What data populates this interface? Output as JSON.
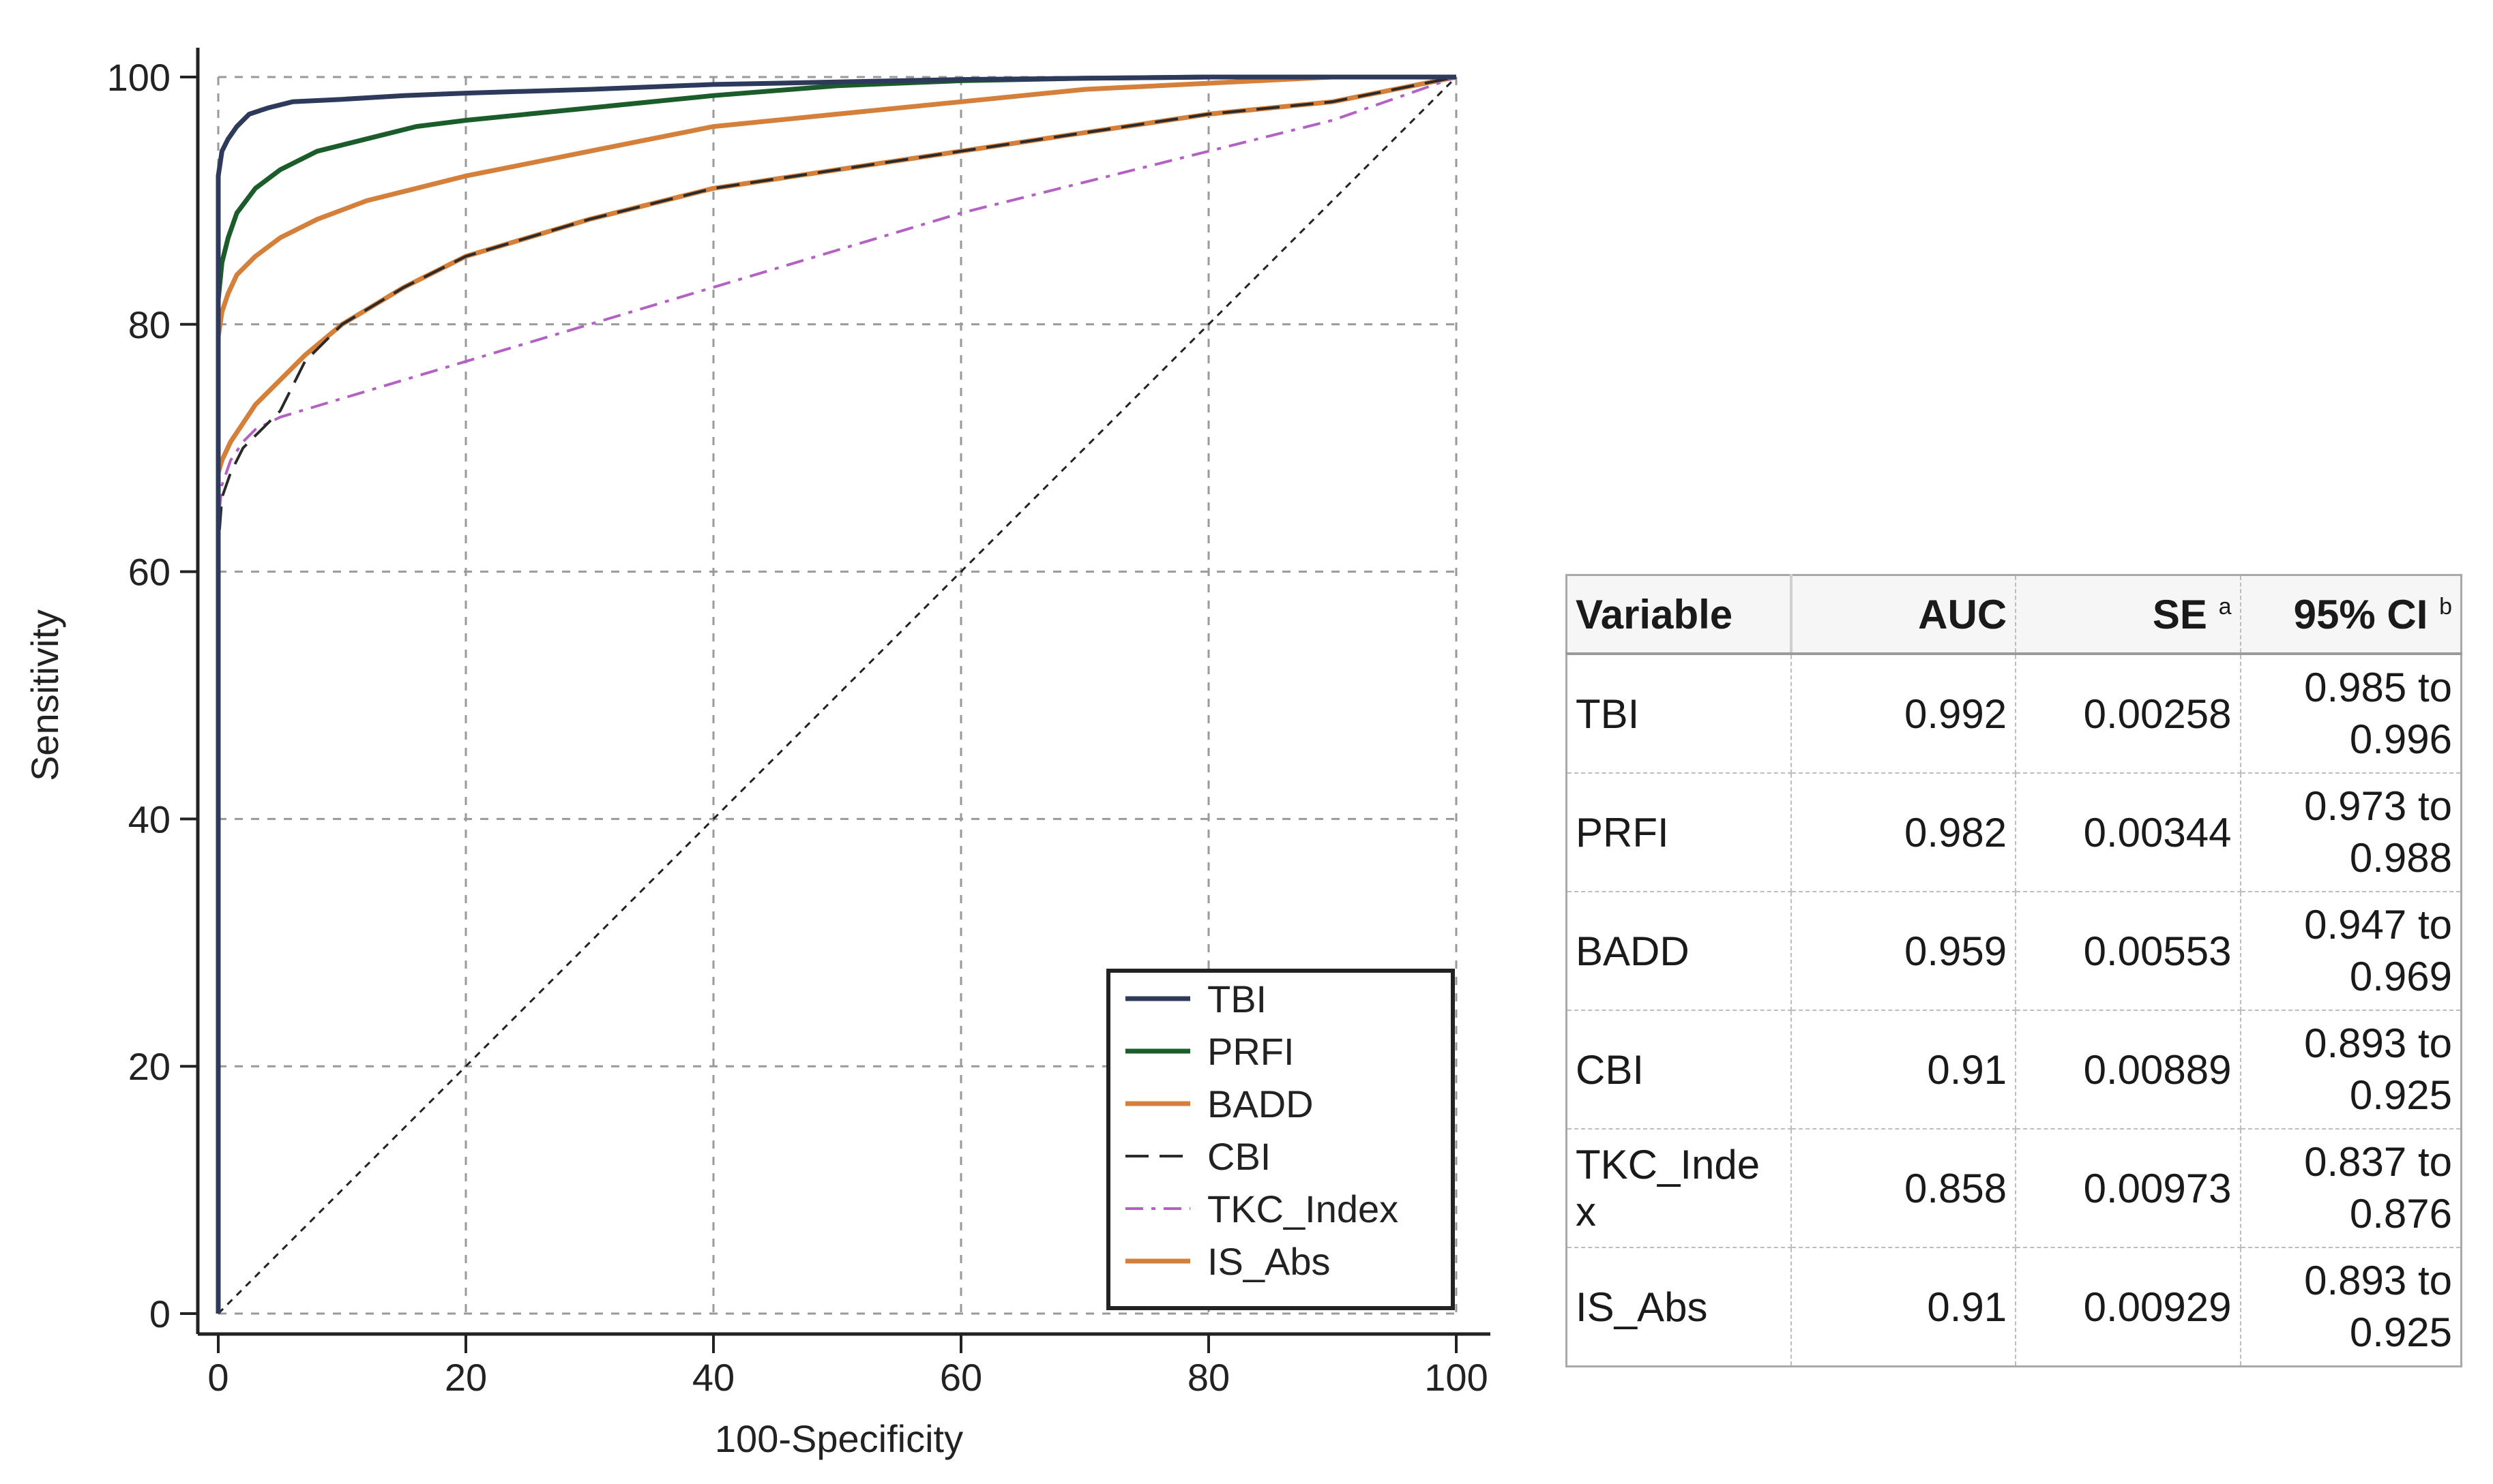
{
  "chart_data": {
    "type": "line",
    "title": "",
    "xlabel": "100-Specificity",
    "ylabel": "Sensitivity",
    "xlim": [
      0,
      100
    ],
    "ylim": [
      0,
      100
    ],
    "xticks": [
      0,
      20,
      40,
      60,
      80,
      100
    ],
    "yticks": [
      0,
      20,
      40,
      60,
      80,
      100
    ],
    "grid": true,
    "legend_position": "bottom-right",
    "reference_line": {
      "name": "diagonal",
      "x": [
        0,
        100
      ],
      "y": [
        0,
        100
      ],
      "color": "#222222"
    },
    "series": [
      {
        "name": "TBI",
        "color": "#2e3a5c",
        "dash": "solid",
        "x": [
          0,
          0,
          0.3,
          0.8,
          1.5,
          2.5,
          4,
          6,
          10,
          15,
          20,
          30,
          40,
          50,
          60,
          70,
          80,
          90,
          100
        ],
        "y": [
          0,
          92,
          94,
          95,
          96,
          97,
          97.5,
          98,
          98.2,
          98.5,
          98.7,
          99,
          99.4,
          99.6,
          99.8,
          99.9,
          100,
          100,
          100
        ]
      },
      {
        "name": "PRFI",
        "color": "#1a5c2a",
        "dash": "solid",
        "x": [
          0,
          0,
          0.3,
          0.8,
          1.5,
          3,
          5,
          8,
          12,
          16,
          20,
          25,
          30,
          40,
          50,
          60,
          70,
          80,
          90,
          100
        ],
        "y": [
          0,
          82,
          85,
          87,
          89,
          91,
          92.5,
          94,
          95,
          96,
          96.5,
          97,
          97.5,
          98.5,
          99.3,
          99.7,
          99.9,
          100,
          100,
          100
        ]
      },
      {
        "name": "BADD",
        "color": "#d47f3a",
        "dash": "solid",
        "x": [
          0,
          0,
          0.3,
          0.8,
          1.5,
          3,
          5,
          8,
          12,
          16,
          20,
          25,
          30,
          35,
          40,
          50,
          60,
          70,
          80,
          90,
          100
        ],
        "y": [
          0,
          79,
          81,
          82.5,
          84,
          85.5,
          87,
          88.5,
          90,
          91,
          92,
          93,
          94,
          95,
          96,
          97,
          98,
          99,
          99.5,
          100,
          100
        ]
      },
      {
        "name": "CBI",
        "color": "#2a2a2a",
        "dash": "long-dash",
        "x": [
          0,
          0,
          0.3,
          1,
          2,
          3,
          5,
          7,
          10,
          15,
          20,
          30,
          40,
          50,
          60,
          70,
          80,
          90,
          100
        ],
        "y": [
          0,
          62,
          66,
          68,
          70,
          71,
          73,
          77,
          80,
          83,
          85.5,
          88.5,
          91,
          92.5,
          94,
          95.5,
          97,
          98,
          100
        ]
      },
      {
        "name": "TKC_Index",
        "color": "#b362c4",
        "dash": "dash-dot",
        "x": [
          0,
          0,
          0.3,
          1,
          2,
          3,
          5,
          10,
          20,
          30,
          40,
          50,
          60,
          70,
          80,
          90,
          100
        ],
        "y": [
          0,
          64,
          67,
          69,
          70.5,
          71.5,
          72.5,
          74,
          77,
          80,
          83,
          86,
          89,
          91.5,
          94,
          96.5,
          100
        ]
      },
      {
        "name": "IS_Abs",
        "color": "#d47f3a",
        "dash": "solid",
        "x": [
          0,
          0,
          0.3,
          1,
          2,
          3,
          5,
          7,
          10,
          15,
          20,
          30,
          40,
          50,
          60,
          70,
          80,
          90,
          100
        ],
        "y": [
          0,
          68,
          69,
          70.5,
          72,
          73.5,
          75.5,
          77.5,
          80,
          83,
          85.5,
          88.5,
          91,
          92.5,
          94,
          95.5,
          97,
          98,
          100
        ]
      }
    ]
  },
  "table": {
    "headers": {
      "variable": "Variable",
      "auc": "AUC",
      "se": "SE",
      "se_sup": "a",
      "ci": "95% CI",
      "ci_sup": "b"
    },
    "rows": [
      {
        "variable": "TBI",
        "auc": "0.992",
        "se": "0.00258",
        "ci_line1": "0.985 to",
        "ci_line2": "0.996"
      },
      {
        "variable": "PRFI",
        "auc": "0.982",
        "se": "0.00344",
        "ci_line1": "0.973 to",
        "ci_line2": "0.988"
      },
      {
        "variable": "BADD",
        "auc": "0.959",
        "se": "0.00553",
        "ci_line1": "0.947 to",
        "ci_line2": "0.969"
      },
      {
        "variable": "CBI",
        "auc": "0.91",
        "se": "0.00889",
        "ci_line1": "0.893 to",
        "ci_line2": "0.925"
      },
      {
        "variable": "TKC_Inde\nx",
        "auc": "0.858",
        "se": "0.00973",
        "ci_line1": "0.837 to",
        "ci_line2": "0.876"
      },
      {
        "variable": "IS_Abs",
        "auc": "0.91",
        "se": "0.00929",
        "ci_line1": "0.893 to",
        "ci_line2": "0.925"
      }
    ]
  }
}
